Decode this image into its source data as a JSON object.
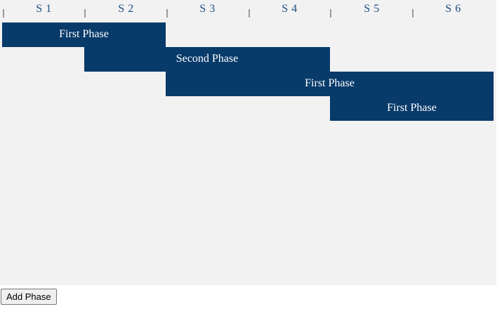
{
  "sprints": [
    "S 1",
    "S 2",
    "S 3",
    "S 4",
    "S 5",
    "S 6"
  ],
  "phases": [
    {
      "label": "First Phase",
      "start_sprint": 1,
      "end_sprint": 2
    },
    {
      "label": "Second Phase",
      "start_sprint": 2,
      "end_sprint": 4
    },
    {
      "label": "First Phase",
      "start_sprint": 3,
      "end_sprint": 6
    },
    {
      "label": "First Phase",
      "start_sprint": 5,
      "end_sprint": 6
    }
  ],
  "colors": {
    "phase_fill": "#083a6a",
    "sprint_label": "#1f4e86",
    "background": "#f2f2f2"
  },
  "add_button_label": "Add Phase"
}
